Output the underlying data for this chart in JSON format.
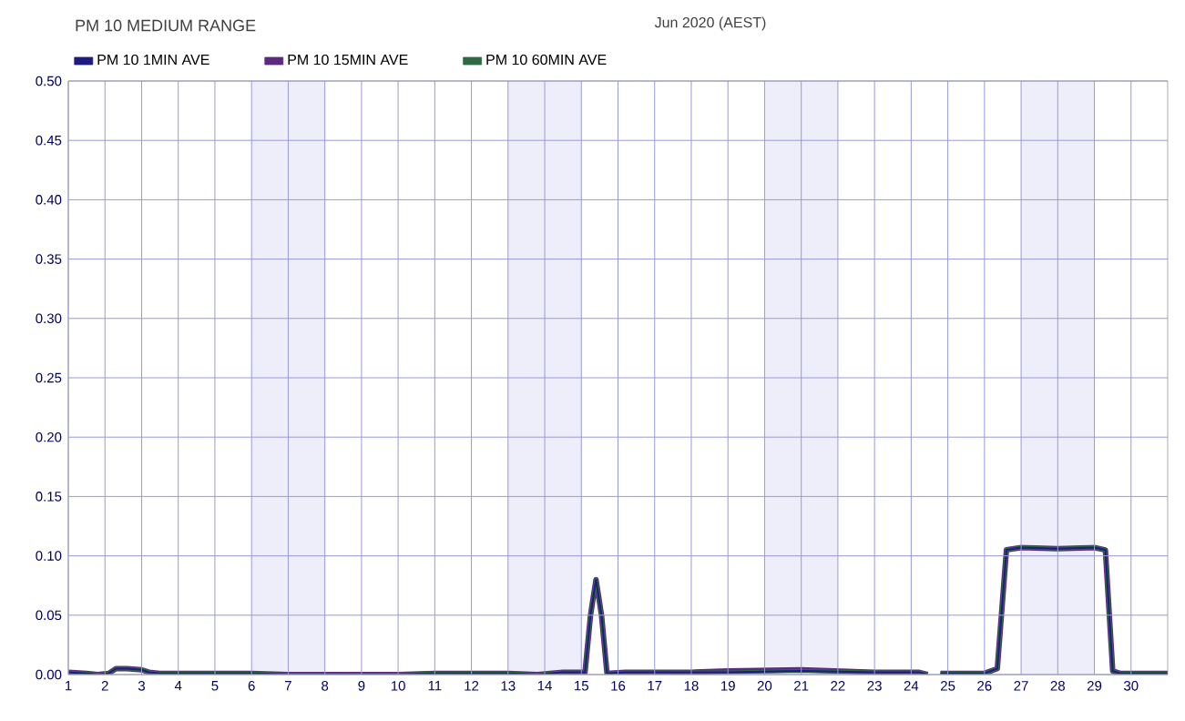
{
  "chart_data": {
    "type": "line",
    "title": "PM 10 MEDIUM RANGE",
    "subtitle": "Jun 2020 (AEST)",
    "x": [
      1,
      1.5,
      1.8,
      2.1,
      2.3,
      2.6,
      3.0,
      3.2,
      3.5,
      4,
      6,
      7,
      8,
      10,
      11,
      13,
      13.8,
      14.5,
      15.1,
      15.25,
      15.4,
      15.55,
      15.7,
      16.2,
      18,
      19,
      21,
      23,
      24.2,
      24.45,
      24.55,
      24.8,
      26,
      26.35,
      26.6,
      27,
      28,
      29,
      29.3,
      29.5,
      29.7,
      31
    ],
    "series": [
      {
        "name": "PM 10 1MIN AVE",
        "color": "#1c1c80",
        "values": [
          0.002,
          0.001,
          0.0,
          0.001,
          0.005,
          0.005,
          0.004,
          0.002,
          0.001,
          0.001,
          0.001,
          0.0,
          0.0,
          0.0,
          0.001,
          0.001,
          0.0,
          0.002,
          0.002,
          0.05,
          0.08,
          0.05,
          0.001,
          0.002,
          0.002,
          0.002,
          0.003,
          0.002,
          0.002,
          0.0,
          null,
          0.001,
          0.001,
          0.005,
          0.105,
          0.107,
          0.106,
          0.107,
          0.105,
          0.003,
          0.001,
          0.001
        ]
      },
      {
        "name": "PM 10 15MIN AVE",
        "color": "#5e2a7e",
        "values": [
          0.002,
          0.001,
          0.0,
          0.001,
          0.005,
          0.005,
          0.004,
          0.002,
          0.001,
          0.001,
          0.001,
          0.0,
          0.0,
          0.0,
          0.001,
          0.001,
          0.0,
          0.002,
          0.002,
          0.05,
          0.08,
          0.05,
          0.001,
          0.002,
          0.002,
          0.003,
          0.004,
          0.002,
          0.002,
          0.0,
          null,
          0.001,
          0.001,
          0.005,
          0.105,
          0.107,
          0.106,
          0.107,
          0.105,
          0.003,
          0.001,
          0.001
        ]
      },
      {
        "name": "PM 10 60MIN AVE",
        "color": "#2f6a45",
        "values": [
          0.002,
          0.001,
          0.0,
          0.001,
          0.005,
          0.005,
          0.004,
          0.002,
          0.001,
          0.001,
          0.001,
          0.0,
          0.0,
          0.0,
          0.001,
          0.001,
          0.0,
          0.002,
          0.002,
          0.05,
          0.08,
          0.05,
          0.001,
          0.002,
          0.002,
          0.002,
          0.003,
          0.002,
          0.002,
          0.0,
          null,
          0.001,
          0.001,
          0.005,
          0.105,
          0.107,
          0.106,
          0.107,
          0.105,
          0.003,
          0.001,
          0.001
        ]
      }
    ],
    "xlim": [
      1,
      31
    ],
    "ylim": [
      0,
      0.5
    ],
    "xticks": [
      1,
      2,
      3,
      4,
      5,
      6,
      7,
      8,
      9,
      10,
      11,
      12,
      13,
      14,
      15,
      16,
      17,
      18,
      19,
      20,
      21,
      22,
      23,
      24,
      25,
      26,
      27,
      28,
      29,
      30
    ],
    "yticks": [
      {
        "value": 0,
        "label": "0.00"
      },
      {
        "value": 0.05,
        "label": "0.05"
      },
      {
        "value": 0.1,
        "label": "0.10"
      },
      {
        "value": 0.15,
        "label": "0.15"
      },
      {
        "value": 0.2,
        "label": "0.20"
      },
      {
        "value": 0.25,
        "label": "0.25"
      },
      {
        "value": 0.3,
        "label": "0.30"
      },
      {
        "value": 0.35,
        "label": "0.35"
      },
      {
        "value": 0.4,
        "label": "0.40"
      },
      {
        "value": 0.45,
        "label": "0.45"
      },
      {
        "value": 0.5,
        "label": "0.50"
      }
    ],
    "bands": [
      {
        "axis": "x",
        "from": 6,
        "to": 8,
        "color": "#eeeefa"
      },
      {
        "axis": "x",
        "from": 13,
        "to": 15,
        "color": "#eeeefa"
      },
      {
        "axis": "x",
        "from": 20,
        "to": 22,
        "color": "#eeeefa"
      },
      {
        "axis": "x",
        "from": 27,
        "to": 29,
        "color": "#eeeefa"
      }
    ],
    "grid": true,
    "legend": "top left",
    "marker": "none",
    "line_style": "solid"
  }
}
